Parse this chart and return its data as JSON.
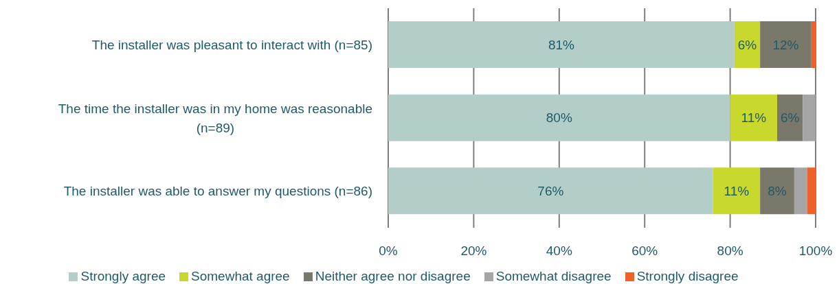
{
  "chart_data": {
    "type": "bar",
    "orientation": "horizontal",
    "stacked": true,
    "categories": [
      "The installer was pleasant to interact with (n=85)",
      "The time the installer was in my home was reasonable (n=89)",
      "The installer was able to answer my questions (n=86)"
    ],
    "series": [
      {
        "name": "Strongly agree",
        "color": "#b3cdc9",
        "values": [
          81,
          80,
          76
        ],
        "value_labels": [
          "81%",
          "80%",
          "76%"
        ]
      },
      {
        "name": "Somewhat agree",
        "color": "#c9d82d",
        "values": [
          6,
          11,
          11
        ],
        "value_labels": [
          "6%",
          "11%",
          "11%"
        ]
      },
      {
        "name": "Neither agree nor disagree",
        "color": "#7a776b",
        "values": [
          12,
          6,
          8
        ],
        "value_labels": [
          "12%",
          "6%",
          "8%"
        ]
      },
      {
        "name": "Somewhat disagree",
        "color": "#a5a5a5",
        "values": [
          0,
          3,
          3
        ]
      },
      {
        "name": "Strongly disagree",
        "color": "#f0612a",
        "values": [
          1,
          0,
          2
        ]
      }
    ],
    "xlim": [
      0,
      100
    ],
    "xticks": [
      {
        "value": 0,
        "label": "0%"
      },
      {
        "value": 20,
        "label": "20%"
      },
      {
        "value": 40,
        "label": "40%"
      },
      {
        "value": 60,
        "label": "60%"
      },
      {
        "value": 80,
        "label": "80%"
      },
      {
        "value": 100,
        "label": "100%"
      }
    ],
    "grid": "x",
    "legend": "bottom"
  }
}
